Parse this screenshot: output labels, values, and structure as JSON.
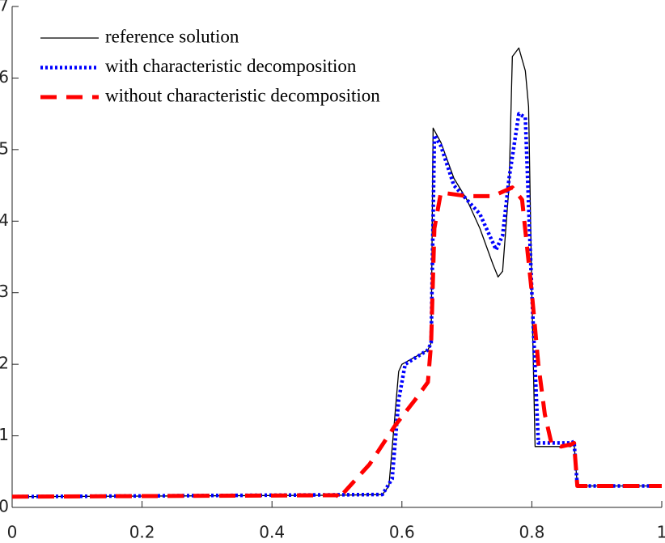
{
  "chart_data": {
    "type": "line",
    "xlim": [
      0,
      1
    ],
    "xticks": [
      0,
      0.2,
      0.4,
      0.6,
      0.8,
      1
    ],
    "ylim": [
      0,
      7
    ],
    "yticks": [
      0,
      1,
      2,
      3,
      4,
      5,
      6,
      7
    ],
    "grid": false,
    "legend": "upper-left",
    "series": [
      {
        "name": "reference solution",
        "color": "#000000",
        "linestyle": "solid",
        "x": [
          0,
          0.5,
          0.57,
          0.58,
          0.595,
          0.6,
          0.62,
          0.64,
          0.645,
          0.648,
          0.66,
          0.68,
          0.7,
          0.72,
          0.74,
          0.748,
          0.755,
          0.765,
          0.77,
          0.78,
          0.79,
          0.795,
          0.8,
          0.805,
          0.86,
          0.865,
          0.87,
          1
        ],
        "values": [
          0.15,
          0.17,
          0.18,
          0.3,
          1.9,
          2.0,
          2.1,
          2.2,
          2.3,
          5.3,
          5.1,
          4.6,
          4.3,
          3.9,
          3.4,
          3.22,
          3.3,
          4.5,
          6.3,
          6.42,
          6.1,
          5.6,
          3.0,
          0.85,
          0.85,
          0.9,
          0.3,
          0.3
        ]
      },
      {
        "name": "with characteristic decomposition",
        "color": "#0000ff",
        "linestyle": "dotted",
        "x": [
          0,
          0.57,
          0.585,
          0.595,
          0.605,
          0.64,
          0.645,
          0.65,
          0.66,
          0.68,
          0.7,
          0.72,
          0.735,
          0.745,
          0.755,
          0.765,
          0.78,
          0.79,
          0.8,
          0.81,
          0.86,
          0.865,
          0.87,
          1
        ],
        "values": [
          0.15,
          0.18,
          0.4,
          1.5,
          2.0,
          2.2,
          2.3,
          5.2,
          5.05,
          4.5,
          4.3,
          4.1,
          3.8,
          3.6,
          3.8,
          4.6,
          5.5,
          5.45,
          3.0,
          0.9,
          0.9,
          0.92,
          0.3,
          0.3
        ]
      },
      {
        "name": "without characteristic decomposition",
        "color": "#ff0000",
        "linestyle": "dashed",
        "x": [
          0,
          0.5,
          0.505,
          0.51,
          0.55,
          0.59,
          0.62,
          0.64,
          0.645,
          0.65,
          0.66,
          0.7,
          0.74,
          0.77,
          0.785,
          0.8,
          0.81,
          0.82,
          0.83,
          0.845,
          0.86,
          0.865,
          0.87,
          1
        ],
        "values": [
          0.15,
          0.17,
          0.12,
          0.2,
          0.6,
          1.15,
          1.5,
          1.75,
          2.3,
          3.9,
          4.4,
          4.35,
          4.35,
          4.47,
          4.3,
          3.0,
          2.0,
          1.3,
          0.9,
          0.85,
          0.88,
          0.9,
          0.3,
          0.3
        ]
      }
    ]
  }
}
